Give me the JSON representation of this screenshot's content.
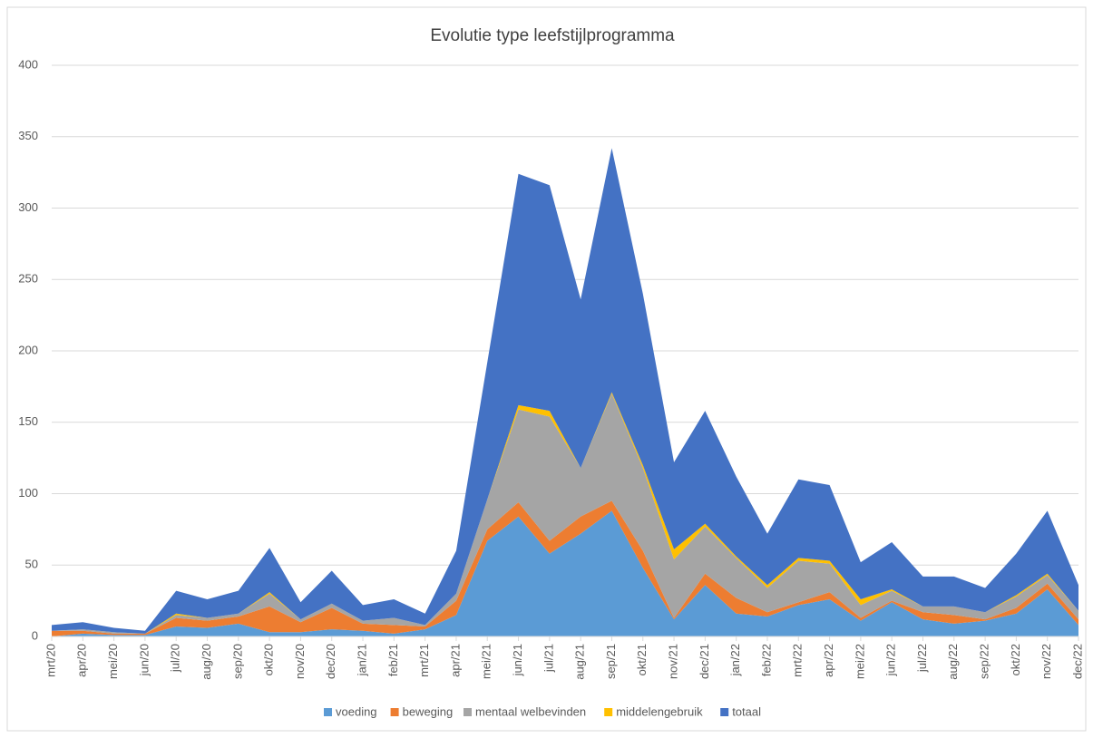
{
  "chart_data": {
    "type": "stacked_area",
    "title": "Evolutie type leefstijlprogramma",
    "categories": [
      "mrt/20",
      "apr/20",
      "mei/20",
      "jun/20",
      "jul/20",
      "aug/20",
      "sep/20",
      "okt/20",
      "nov/20",
      "dec/20",
      "jan/21",
      "feb/21",
      "mrt/21",
      "apr/21",
      "mei/21",
      "jun/21",
      "jul/21",
      "aug/21",
      "sep/21",
      "okt/21",
      "nov/21",
      "dec/21",
      "jan/22",
      "feb/22",
      "mrt/22",
      "apr/22",
      "mei/22",
      "jun/22",
      "jul/22",
      "aug/22",
      "sep/22",
      "okt/22",
      "nov/22",
      "dec/22"
    ],
    "series": [
      {
        "name": "voeding",
        "color": "#5b9bd5",
        "values": [
          0,
          2,
          1,
          1,
          7,
          6,
          9,
          3,
          3,
          5,
          4,
          2,
          5,
          15,
          67,
          84,
          58,
          72,
          88,
          48,
          12,
          36,
          16,
          14,
          22,
          26,
          11,
          24,
          12,
          9,
          11,
          16,
          33,
          8
        ]
      },
      {
        "name": "beweging",
        "color": "#ed7d31",
        "values": [
          4,
          2,
          1,
          1,
          6,
          5,
          5,
          18,
          7,
          15,
          5,
          6,
          2,
          10,
          8,
          10,
          9,
          12,
          7,
          12,
          1,
          8,
          11,
          3,
          2,
          5,
          2,
          1,
          5,
          6,
          1,
          4,
          4,
          4
        ]
      },
      {
        "name": "mentaal welbevinden",
        "color": "#a5a5a5",
        "values": [
          0,
          1,
          1,
          0,
          2,
          2,
          2,
          9,
          2,
          3,
          2,
          5,
          1,
          5,
          21,
          65,
          87,
          34,
          75,
          58,
          41,
          33,
          28,
          17,
          29,
          20,
          9,
          7,
          4,
          6,
          5,
          8,
          6,
          6
        ]
      },
      {
        "name": "middelengebruik",
        "color": "#ffc000",
        "values": [
          0,
          0,
          0,
          0,
          1,
          0,
          0,
          1,
          0,
          0,
          0,
          0,
          0,
          0,
          0,
          3,
          4,
          0,
          1,
          2,
          7,
          2,
          1,
          2,
          2,
          2,
          4,
          1,
          0,
          0,
          0,
          1,
          1,
          0
        ]
      },
      {
        "name": "totaal",
        "color": "#4472c4",
        "values": [
          4,
          5,
          3,
          2,
          16,
          13,
          16,
          31,
          12,
          23,
          11,
          13,
          8,
          30,
          96,
          162,
          158,
          118,
          171,
          120,
          61,
          79,
          56,
          36,
          55,
          53,
          26,
          33,
          21,
          21,
          17,
          29,
          44,
          18
        ]
      }
    ],
    "ylim": [
      0,
      400
    ],
    "yticks": [
      0,
      50,
      100,
      150,
      200,
      250,
      300,
      350,
      400
    ],
    "grid": true,
    "legend": "bottom"
  }
}
